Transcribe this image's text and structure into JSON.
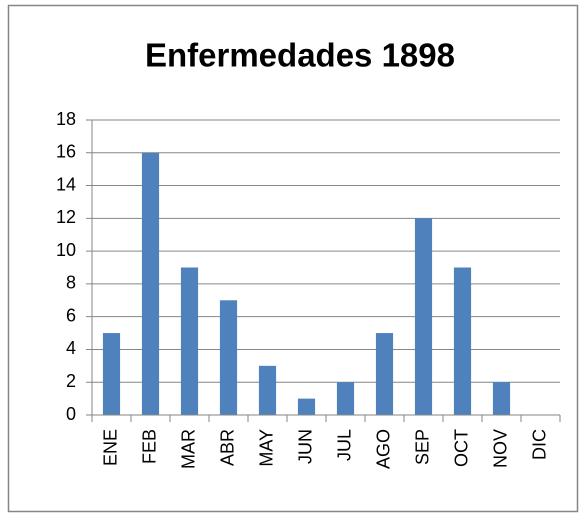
{
  "chart_data": {
    "type": "bar",
    "title": "Enfermedades 1898",
    "categories": [
      "ENE",
      "FEB",
      "MAR",
      "ABR",
      "MAY",
      "JUN",
      "JUL",
      "AGO",
      "SEP",
      "OCT",
      "NOV",
      "DIC"
    ],
    "values": [
      5,
      16,
      9,
      7,
      3,
      1,
      2,
      5,
      12,
      9,
      2,
      0
    ],
    "color": "#4f81bd",
    "ylim": [
      0,
      18
    ],
    "yticks": [
      0,
      2,
      4,
      6,
      8,
      10,
      12,
      14,
      16,
      18
    ],
    "grid": true
  }
}
